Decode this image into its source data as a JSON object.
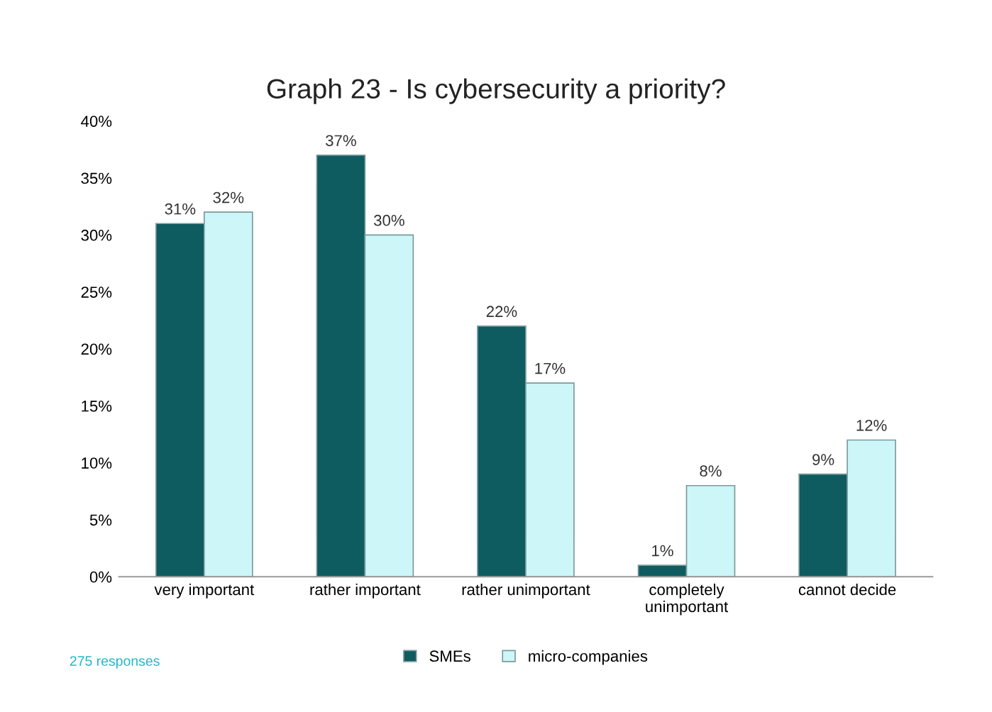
{
  "chart_data": {
    "type": "bar",
    "title": "Graph 23 - Is cybersecurity a priority?",
    "categories": [
      "very important",
      "rather important",
      "rather unimportant",
      "completely\nunimportant",
      "cannot decide"
    ],
    "series": [
      {
        "name": "SMEs",
        "color": "#0e5b60",
        "values": [
          31,
          37,
          22,
          1,
          9
        ],
        "value_labels": [
          "31%",
          "37%",
          "22%",
          "1%",
          "9%"
        ]
      },
      {
        "name": "micro-companies",
        "color": "#cdf6f9",
        "values": [
          32,
          30,
          17,
          8,
          12
        ],
        "value_labels": [
          "32%",
          "30%",
          "17%",
          "8%",
          "12%"
        ]
      }
    ],
    "ylim": [
      0,
      40
    ],
    "yticks": [
      {
        "value": 0,
        "label": "0%"
      },
      {
        "value": 5,
        "label": "5%"
      },
      {
        "value": 10,
        "label": "10%"
      },
      {
        "value": 15,
        "label": "15%"
      },
      {
        "value": 20,
        "label": "20%"
      },
      {
        "value": 25,
        "label": "25%"
      },
      {
        "value": 30,
        "label": "30%"
      },
      {
        "value": 35,
        "label": "35%"
      },
      {
        "value": 40,
        "label": "40%"
      }
    ],
    "grid": false,
    "legend": "bottom",
    "annotations": [
      "275 responses"
    ]
  }
}
